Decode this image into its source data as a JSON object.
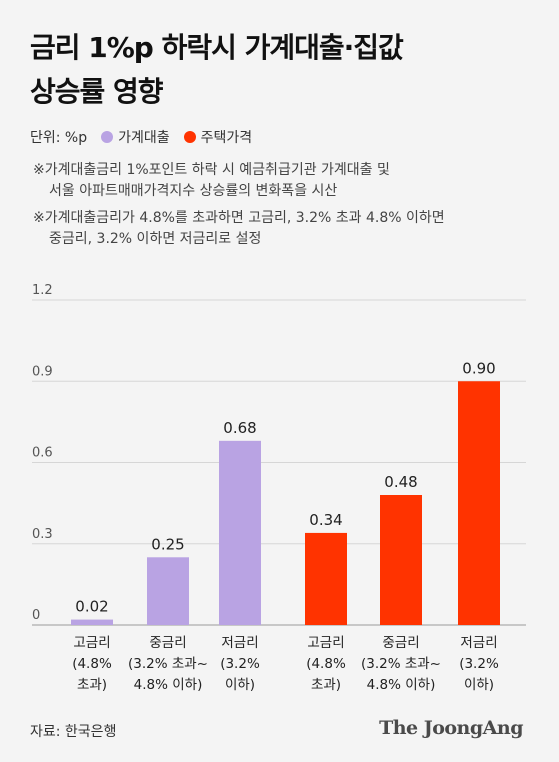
{
  "title_lines": [
    "금리 1%p 하락시 가계대출·집값",
    "상승률 영향"
  ],
  "legend": {
    "unit": "단위: %p",
    "items": [
      {
        "label": "가계대출",
        "color": "#b9a3e3"
      },
      {
        "label": "주택가격",
        "color": "#ff3300"
      }
    ]
  },
  "notes": [
    [
      "※가계대출금리 1%포인트 하락 시 예금취급기관 가계대출 및",
      "서울 아파트매매가격지수 상승률의 변화폭을 시산"
    ],
    [
      "※가계대출금리가 4.8%를 초과하면 고금리, 3.2% 초과 4.8% 이하면",
      "중금리, 3.2% 이하면 저금리로 설정"
    ]
  ],
  "chart_data": {
    "type": "bar",
    "ylim": [
      0,
      1.2
    ],
    "y_ticks": [
      "0",
      "0.3",
      "0.6",
      "0.9",
      "1.2"
    ],
    "grid": true,
    "groups": [
      {
        "series": "가계대출",
        "color": "#b9a3e3",
        "bars": [
          {
            "label_lines": [
              "고금리",
              "(4.8%",
              "초과)"
            ],
            "value": 0.02,
            "value_label": "0.02"
          },
          {
            "label_lines": [
              "중금리",
              "(3.2% 초과~",
              "4.8% 이하)"
            ],
            "value": 0.25,
            "value_label": "0.25"
          },
          {
            "label_lines": [
              "저금리",
              "(3.2%",
              "이하)"
            ],
            "value": 0.68,
            "value_label": "0.68"
          }
        ]
      },
      {
        "series": "주택가격",
        "color": "#ff3300",
        "bars": [
          {
            "label_lines": [
              "고금리",
              "(4.8%",
              "초과)"
            ],
            "value": 0.34,
            "value_label": "0.34"
          },
          {
            "label_lines": [
              "중금리",
              "(3.2% 초과~",
              "4.8% 이하)"
            ],
            "value": 0.48,
            "value_label": "0.48"
          },
          {
            "label_lines": [
              "저금리",
              "(3.2%",
              "이하)"
            ],
            "value": 0.9,
            "value_label": "0.90"
          }
        ]
      }
    ]
  },
  "source": "자료: 한국은행",
  "logo": "The JoongAng"
}
